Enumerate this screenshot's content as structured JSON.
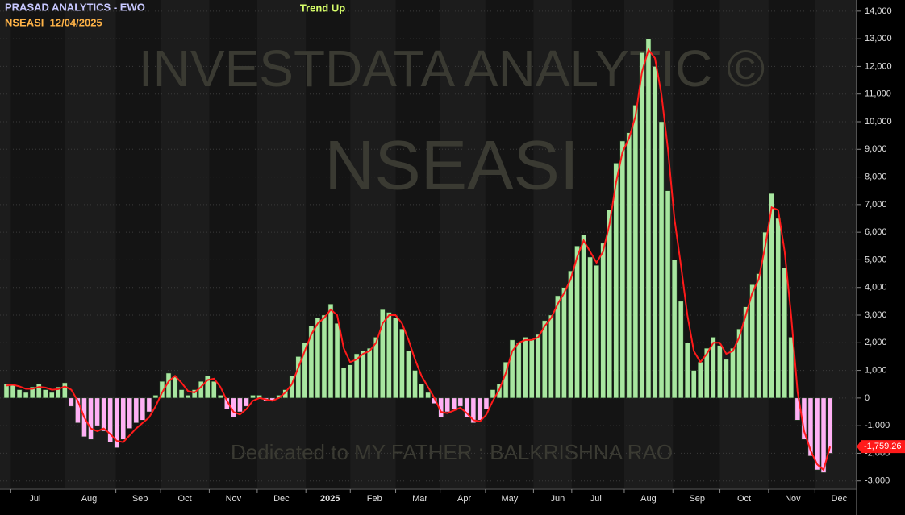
{
  "chart_data": {
    "type": "bar",
    "header": "PRASAD ANALYTICS - EWO",
    "symbol_date": "NSEASI  12/04/2025",
    "trend": "Trend Up",
    "watermark": "INVESTDATA ANALYTIC ©",
    "watermark_symbol": "NSEASI",
    "dedication": "Dedicated to MY FATHER : BALKRISHNA RAO",
    "up_color": "#a8e6a0",
    "down_color": "#ffb0f5",
    "values": [
      500,
      500,
      300,
      200,
      400,
      500,
      300,
      200,
      400,
      550,
      -300,
      -900,
      -1400,
      -1500,
      -1000,
      -1200,
      -1600,
      -1800,
      -1500,
      -1100,
      -900,
      -800,
      -500,
      100,
      600,
      900,
      800,
      300,
      100,
      300,
      600,
      800,
      600,
      100,
      -400,
      -700,
      -500,
      -300,
      100,
      100,
      -100,
      -100,
      100,
      300,
      800,
      1500,
      2000,
      2600,
      2900,
      3000,
      3400,
      2700,
      1100,
      1200,
      1600,
      1700,
      1800,
      2200,
      3200,
      3100,
      2900,
      2500,
      1700,
      1000,
      500,
      200,
      -200,
      -700,
      -500,
      -400,
      -300,
      -700,
      -900,
      -800,
      -400,
      300,
      500,
      1300,
      2100,
      2000,
      2200,
      2100,
      2300,
      2800,
      3000,
      3700,
      4000,
      4600,
      5500,
      5900,
      5100,
      4800,
      5600,
      6800,
      8500,
      9300,
      9600,
      10600,
      12500,
      13000,
      12000,
      10000,
      7500,
      5000,
      3500,
      2000,
      1000,
      1300,
      1800,
      2200,
      1900,
      1400,
      1800,
      2500,
      3300,
      4100,
      4500,
      6000,
      7400,
      6500,
      4700,
      2200,
      -800,
      -1500,
      -2100,
      -2600,
      -2700,
      -2000
    ],
    "signal": {
      "color": "#ff1a1a",
      "last_label": "-1,759.26",
      "values": [
        450,
        480,
        420,
        330,
        330,
        400,
        380,
        300,
        320,
        420,
        300,
        -100,
        -700,
        -1100,
        -1200,
        -1100,
        -1300,
        -1550,
        -1600,
        -1350,
        -1100,
        -900,
        -700,
        -300,
        200,
        600,
        800,
        550,
        250,
        200,
        400,
        650,
        700,
        400,
        -100,
        -500,
        -600,
        -400,
        -100,
        0,
        -50,
        -100,
        0,
        200,
        500,
        1100,
        1700,
        2300,
        2700,
        2900,
        3200,
        3000,
        1800,
        1300,
        1400,
        1600,
        1700,
        2000,
        2700,
        3000,
        3000,
        2700,
        2100,
        1400,
        800,
        400,
        0,
        -500,
        -550,
        -450,
        -350,
        -550,
        -800,
        -850,
        -600,
        -100,
        300,
        900,
        1700,
        2000,
        2100,
        2100,
        2200,
        2600,
        2900,
        3400,
        3800,
        4300,
        5100,
        5700,
        5300,
        4900,
        5300,
        6300,
        7800,
        8900,
        9400,
        10200,
        11800,
        12600,
        12300,
        11000,
        9000,
        6500,
        4800,
        3000,
        1700,
        1300,
        1600,
        2000,
        2000,
        1600,
        1700,
        2200,
        3000,
        3800,
        4300,
        5500,
        6900,
        6800,
        5300,
        3000,
        200,
        -1200,
        -1900,
        -2400,
        -2600,
        -1759.26
      ]
    },
    "ylim": [
      -3300,
      14200
    ],
    "yticks": [
      {
        "value": 14000,
        "label": "14,000"
      },
      {
        "value": 13000,
        "label": "13,000"
      },
      {
        "value": 12000,
        "label": "12,000"
      },
      {
        "value": 11000,
        "label": "11,000"
      },
      {
        "value": 10000,
        "label": "10,000"
      },
      {
        "value": 9000,
        "label": "9,000"
      },
      {
        "value": 8000,
        "label": "8,000"
      },
      {
        "value": 7000,
        "label": "7,000"
      },
      {
        "value": 6000,
        "label": "6,000"
      },
      {
        "value": 5000,
        "label": "5,000"
      },
      {
        "value": 4000,
        "label": "4,000"
      },
      {
        "value": 3000,
        "label": "3,000"
      },
      {
        "value": 2000,
        "label": "2,000"
      },
      {
        "value": 1000,
        "label": "1,000"
      },
      0,
      {
        "value": -1000,
        "label": "-1,000"
      },
      {
        "value": -2000,
        "label": "-2,000"
      },
      {
        "value": -3000,
        "label": "-3,000"
      }
    ],
    "xticks": [
      {
        "value": 4.4,
        "label": "Jul"
      },
      {
        "value": 12.75,
        "label": "Aug"
      },
      {
        "value": 20.6,
        "label": "Sep"
      },
      {
        "value": 27.5,
        "label": "Oct"
      },
      {
        "value": 35,
        "label": "Nov"
      },
      {
        "value": 42.4,
        "label": "Dec"
      },
      {
        "value": 49.9,
        "label": "2025"
      },
      {
        "value": 56.75,
        "label": "Feb"
      },
      {
        "value": 63.75,
        "label": "Mar"
      },
      {
        "value": 70.6,
        "label": "Apr"
      },
      {
        "value": 77.6,
        "label": "May"
      },
      {
        "value": 85,
        "label": "Jun"
      },
      {
        "value": 90.9,
        "label": "Jul"
      },
      {
        "value": 99,
        "label": "Aug"
      },
      {
        "value": 106.5,
        "label": "Sep"
      },
      {
        "value": 113.75,
        "label": "Oct"
      },
      {
        "value": 121.25,
        "label": "Nov"
      },
      {
        "value": 128.4,
        "label": "Dec"
      }
    ],
    "grid": true
  }
}
